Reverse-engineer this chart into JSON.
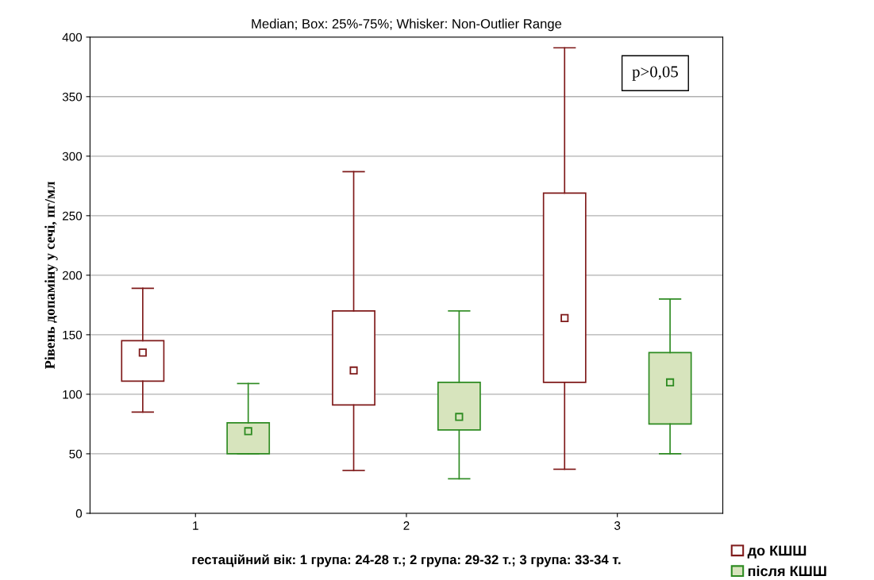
{
  "chart_data": {
    "type": "box",
    "title": "Median; Box: 25%-75%; Whisker: Non-Outlier Range",
    "xlabel": "гестаційний вік: 1 група: 24-28 т.; 2 група: 29-32 т.; 3 група: 33-34 т.",
    "ylabel": "Рівень допаміну у сечі, пг/мл",
    "categories": [
      "1",
      "2",
      "3"
    ],
    "series": [
      {
        "name": "до КШШ",
        "color": "#7f1a1a",
        "colors": [
          "#ffffff",
          "#ffffff",
          "#ffffff"
        ],
        "boxes": [
          {
            "low": 85,
            "q1": 111,
            "median": 135,
            "q3": 145,
            "high": 189
          },
          {
            "low": 36,
            "q1": 91,
            "median": 120,
            "q3": 170,
            "high": 287
          },
          {
            "low": 37,
            "q1": 110,
            "median": 164,
            "q3": 269,
            "high": 391
          }
        ]
      },
      {
        "name": "після КШШ",
        "color": "#2e8b22",
        "colors": [
          "#d7e4bd",
          "#d7e4bd",
          "#d7e4bd"
        ],
        "boxes": [
          {
            "low": 50,
            "q1": 50,
            "median": 69,
            "q3": 76,
            "high": 109
          },
          {
            "low": 29,
            "q1": 70,
            "median": 81,
            "q3": 110,
            "high": 170
          },
          {
            "low": 50,
            "q1": 75,
            "median": 110,
            "q3": 135,
            "high": 180
          }
        ]
      }
    ],
    "ylim": [
      0,
      400
    ],
    "yticks": [
      0,
      50,
      100,
      150,
      200,
      250,
      300,
      350,
      400
    ],
    "grid": "y",
    "legend": "bottom right",
    "marker": "square",
    "annotations": [
      "p>0,05"
    ]
  }
}
